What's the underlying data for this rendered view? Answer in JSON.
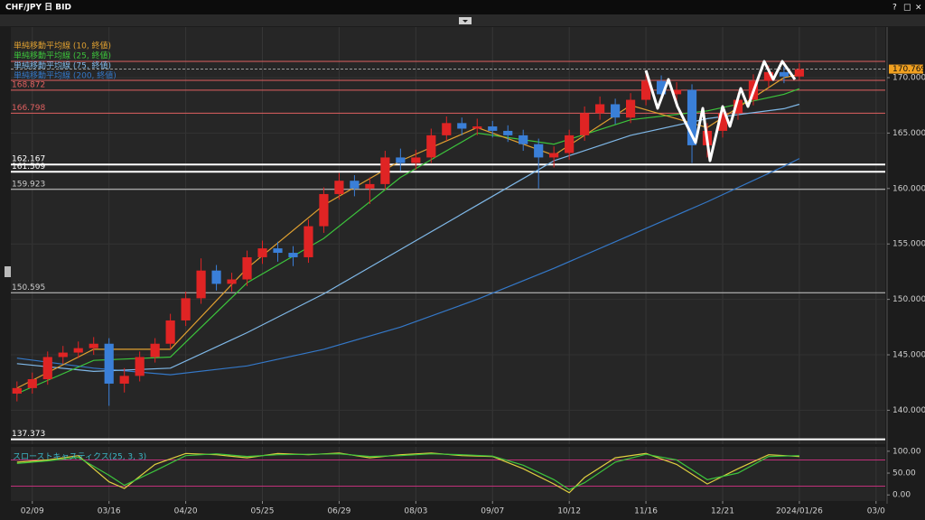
{
  "window": {
    "title": "CHF/JPY 日 BID",
    "buttons": [
      "?",
      "□",
      "×"
    ]
  },
  "chart_data": {
    "type": "candlestick",
    "xlim": [
      -7,
      278
    ],
    "xticks": [
      {
        "value": 0,
        "label": "02/09"
      },
      {
        "value": 25,
        "label": "03/16"
      },
      {
        "value": 50,
        "label": "04/20"
      },
      {
        "value": 75,
        "label": "05/25"
      },
      {
        "value": 100,
        "label": "06/29"
      },
      {
        "value": 125,
        "label": "08/03"
      },
      {
        "value": 150,
        "label": "09/07"
      },
      {
        "value": 175,
        "label": "10/12"
      },
      {
        "value": 200,
        "label": "11/16"
      },
      {
        "value": 225,
        "label": "12/21"
      },
      {
        "value": 250,
        "label": "2024/01/26"
      },
      {
        "value": 275,
        "label": "03/0"
      }
    ],
    "ylim": [
      136.94,
      174.56
    ],
    "yticks": [
      {
        "value": 140,
        "label": "140.000"
      },
      {
        "value": 145,
        "label": "145.000"
      },
      {
        "value": 150,
        "label": "150.000"
      },
      {
        "value": 155,
        "label": "155.000"
      },
      {
        "value": 160,
        "label": "160.000"
      },
      {
        "value": 165,
        "label": "165.000"
      },
      {
        "value": 170,
        "label": "170.000"
      }
    ],
    "grid": true,
    "up_color": "#e02424",
    "down_color": "#3a7fd8",
    "x": [
      -5,
      0,
      5,
      10,
      15,
      20,
      25,
      30,
      35,
      40,
      45,
      50,
      55,
      60,
      65,
      70,
      75,
      80,
      85,
      90,
      95,
      100,
      105,
      110,
      115,
      120,
      125,
      130,
      135,
      140,
      145,
      150,
      155,
      160,
      165,
      170,
      175,
      180,
      185,
      190,
      195,
      200,
      205,
      210,
      215,
      220,
      225,
      230,
      235,
      240,
      245,
      250
    ],
    "open": [
      141.5,
      142.0,
      142.8,
      144.8,
      145.2,
      145.6,
      146.0,
      142.4,
      143.1,
      144.8,
      146.0,
      148.1,
      150.1,
      152.6,
      151.4,
      151.8,
      153.8,
      154.6,
      154.2,
      153.8,
      156.6,
      159.5,
      160.7,
      160.0,
      160.4,
      162.8,
      162.3,
      162.8,
      164.8,
      165.9,
      165.4,
      165.6,
      165.2,
      164.8,
      164.0,
      162.8,
      163.2,
      164.8,
      166.8,
      167.6,
      166.4,
      168.0,
      169.7,
      168.5,
      168.9,
      163.9,
      165.2,
      166.8,
      168.0,
      169.7,
      170.5,
      170.1
    ],
    "high": [
      142.6,
      143.4,
      145.3,
      145.8,
      146.2,
      146.6,
      146.5,
      143.8,
      145.3,
      146.5,
      148.7,
      150.7,
      153.7,
      153.1,
      152.4,
      154.4,
      155.3,
      155.2,
      154.8,
      157.2,
      160.1,
      161.4,
      161.2,
      161.0,
      163.4,
      163.6,
      163.5,
      165.4,
      166.5,
      166.4,
      166.3,
      166.1,
      165.7,
      165.3,
      164.5,
      163.8,
      165.3,
      167.4,
      168.3,
      168.1,
      168.6,
      170.4,
      170.2,
      169.6,
      169.4,
      165.9,
      167.4,
      168.6,
      170.3,
      171.1,
      171.0,
      171.3
    ],
    "low": [
      140.8,
      141.5,
      142.3,
      144.2,
      144.7,
      145.0,
      140.4,
      141.6,
      142.6,
      144.3,
      145.5,
      147.6,
      149.6,
      150.8,
      150.7,
      151.2,
      153.2,
      153.4,
      153.0,
      153.3,
      156.0,
      159.0,
      159.3,
      158.6,
      159.9,
      161.6,
      161.7,
      162.3,
      164.3,
      164.8,
      164.8,
      164.6,
      164.2,
      163.4,
      160.0,
      161.9,
      162.6,
      164.3,
      166.2,
      165.8,
      165.9,
      167.5,
      167.9,
      167.8,
      162.3,
      162.8,
      164.6,
      166.2,
      167.5,
      169.1,
      169.5,
      169.8
    ],
    "close": [
      142.0,
      142.8,
      144.8,
      145.2,
      145.6,
      146.0,
      142.4,
      143.1,
      144.8,
      146.0,
      148.1,
      150.1,
      152.6,
      151.4,
      151.8,
      153.8,
      154.6,
      154.2,
      153.8,
      156.6,
      159.5,
      160.7,
      160.0,
      160.4,
      162.8,
      162.3,
      162.8,
      164.8,
      165.9,
      165.4,
      165.6,
      165.2,
      164.8,
      164.0,
      162.8,
      163.2,
      164.8,
      166.8,
      167.6,
      166.4,
      168.0,
      169.7,
      168.5,
      168.9,
      163.9,
      165.2,
      166.8,
      168.0,
      169.7,
      170.5,
      170.1,
      170.769
    ],
    "moving_averages": [
      {
        "name": "単純移動平均線 (10, 終値)",
        "color": "#e0a030",
        "x": [
          -5,
          20,
          45,
          70,
          95,
          120,
          145,
          170,
          195,
          220,
          245,
          250
        ],
        "values": [
          142.0,
          145.5,
          145.5,
          152.8,
          158.5,
          162.5,
          165.5,
          163.0,
          167.5,
          165.5,
          170.0,
          170.3
        ]
      },
      {
        "name": "単純移動平均線 (25, 終値)",
        "color": "#3cc43c",
        "x": [
          -5,
          20,
          45,
          70,
          95,
          120,
          145,
          170,
          195,
          220,
          245,
          250
        ],
        "values": [
          141.5,
          144.5,
          144.8,
          151.5,
          155.5,
          161.0,
          165.0,
          164.0,
          166.2,
          167.0,
          168.5,
          169.0
        ]
      },
      {
        "name": "単純移動平均線 (75, 終値)",
        "color": "#7fb8e8",
        "x": [
          -5,
          20,
          45,
          70,
          95,
          120,
          145,
          170,
          195,
          220,
          245,
          250
        ],
        "values": [
          144.2,
          143.5,
          143.8,
          147.0,
          150.5,
          154.5,
          158.5,
          162.5,
          164.8,
          166.3,
          167.2,
          167.6
        ]
      },
      {
        "name": "単純移動平均線 (200, 終値)",
        "color": "#3478c8",
        "x": [
          -5,
          20,
          45,
          70,
          95,
          120,
          145,
          170,
          195,
          220,
          245,
          250
        ],
        "values": [
          144.7,
          143.8,
          143.2,
          144.0,
          145.5,
          147.5,
          150.0,
          152.8,
          155.8,
          158.8,
          162.0,
          162.7
        ]
      }
    ],
    "labeled_levels": [
      {
        "value": 168.872,
        "color": "#e06060",
        "width": 1
      },
      {
        "value": 166.798,
        "color": "#e06060",
        "width": 1
      },
      {
        "value": 162.167,
        "color": "#ffffff",
        "width": 2
      },
      {
        "value": 161.509,
        "color": "#ffffff",
        "width": 2
      },
      {
        "value": 159.923,
        "color": "#cccccc",
        "width": 1
      },
      {
        "value": 150.595,
        "color": "#cccccc",
        "width": 1
      },
      {
        "value": 137.373,
        "color": "#ffffff",
        "width": 2
      }
    ],
    "unlabeled_levels": [
      {
        "value": 171.47,
        "color": "#e06060",
        "width": 1
      },
      {
        "value": 169.76,
        "color": "#e06060",
        "width": 1
      }
    ],
    "price_label_color": "#f0a020",
    "stochastic": {
      "name": "スローストキャスティクス(25, 3, 3)",
      "ylim": [
        -14,
        110
      ],
      "yticks": [
        {
          "value": 0,
          "label": "0.00"
        },
        {
          "value": 50,
          "label": "50.00"
        },
        {
          "value": 100,
          "label": "100.00"
        }
      ],
      "levels": [
        20,
        80
      ],
      "level_color": "#c0307a",
      "x": [
        -5,
        5,
        15,
        25,
        30,
        40,
        50,
        60,
        70,
        80,
        90,
        100,
        110,
        120,
        130,
        140,
        150,
        160,
        170,
        175,
        180,
        190,
        200,
        210,
        220,
        230,
        240,
        250
      ],
      "series": [
        {
          "color": "#e0d040",
          "values": [
            75,
            80,
            90,
            30,
            15,
            70,
            95,
            92,
            85,
            95,
            92,
            96,
            85,
            92,
            96,
            90,
            88,
            60,
            25,
            5,
            40,
            85,
            95,
            70,
            25,
            60,
            92,
            88
          ]
        },
        {
          "color": "#3cc43c",
          "values": [
            72,
            78,
            86,
            45,
            22,
            55,
            90,
            94,
            88,
            92,
            93,
            94,
            88,
            90,
            94,
            92,
            89,
            68,
            35,
            12,
            28,
            75,
            93,
            80,
            35,
            50,
            88,
            90
          ]
        }
      ]
    }
  }
}
